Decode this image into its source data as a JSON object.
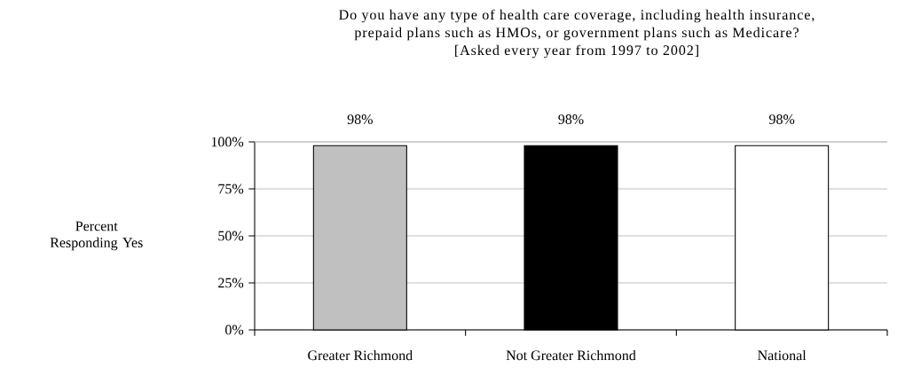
{
  "chart_data": {
    "type": "bar",
    "title": "Do you have any type of health care coverage, including health insurance, prepaid plans such as HMOs, or government plans such as Medicare?",
    "subtitle": "[Asked every year from 1997 to 2002]",
    "ylabel": "Percent Responding Yes",
    "categories": [
      "Greater Richmond",
      "Not Greater Richmond",
      "National"
    ],
    "values": [
      98,
      98,
      98
    ],
    "colors": [
      "#c0c0c0",
      "#000000",
      "#ffffff"
    ],
    "ylim": [
      0,
      100
    ],
    "yticks": [
      {
        "value": 0,
        "label": "0%"
      },
      {
        "value": 25,
        "label": "25%"
      },
      {
        "value": 50,
        "label": "50%"
      },
      {
        "value": 75,
        "label": "75%"
      },
      {
        "value": 100,
        "label": "100%"
      }
    ],
    "value_labels": [
      "98%",
      "98%",
      "98%"
    ],
    "grid": "y"
  }
}
